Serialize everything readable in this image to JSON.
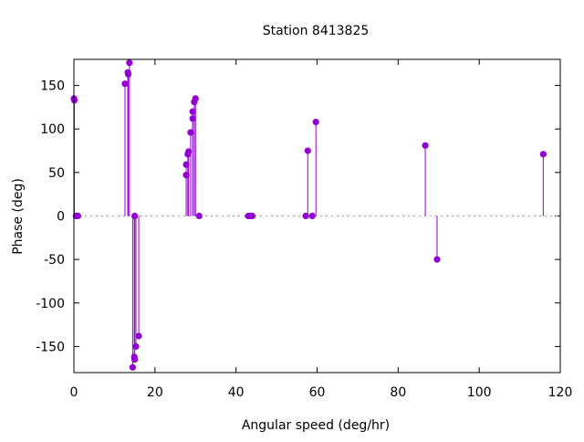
{
  "chart_data": {
    "type": "impulse-scatter",
    "title": "Station 8413825",
    "xlabel": "Angular speed (deg/hr)",
    "ylabel": "Phase (deg)",
    "xlim": [
      0,
      120
    ],
    "ylim": [
      -180,
      180
    ],
    "xticks": [
      0,
      20,
      40,
      60,
      80,
      100,
      120
    ],
    "yticks": [
      -150,
      -100,
      -50,
      0,
      50,
      100,
      150
    ],
    "zero_line": "dotted",
    "grid": false,
    "color": "#9400d3",
    "x": [
      0.0,
      0.1,
      0.5,
      1.0,
      12.6,
      13.3,
      13.4,
      13.7,
      14.5,
      14.9,
      15.0,
      15.0,
      15.3,
      16.0,
      27.7,
      27.7,
      28.1,
      28.3,
      28.8,
      29.3,
      29.3,
      29.7,
      30.0,
      30.9,
      43.0,
      43.5,
      44.0,
      57.2,
      57.7,
      58.8,
      59.7,
      86.7,
      89.6,
      115.8
    ],
    "y": [
      135,
      133,
      0,
      0,
      152,
      165,
      163,
      176,
      -174,
      -162,
      -165,
      0,
      -150,
      -138,
      47,
      59,
      71,
      74,
      96,
      112,
      120,
      131,
      135,
      0,
      0,
      0,
      0,
      0,
      75,
      0,
      108,
      81,
      -50,
      71
    ]
  }
}
